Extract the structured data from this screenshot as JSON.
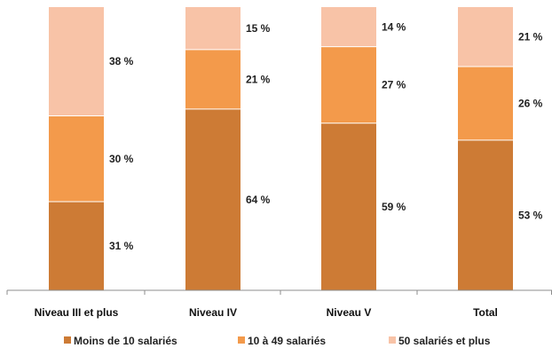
{
  "chart_data": {
    "type": "bar",
    "stacked": true,
    "categories": [
      "Niveau III et plus",
      "Niveau IV",
      "Niveau V",
      "Total"
    ],
    "series": [
      {
        "name": "Moins de 10 salariés",
        "values": [
          31,
          64,
          59,
          53
        ],
        "labels": [
          "31 %",
          "64 %",
          "59 %",
          "53 %"
        ],
        "color": "#CD7B35"
      },
      {
        "name": "10 à 49 salariés",
        "values": [
          30,
          21,
          27,
          26
        ],
        "labels": [
          "30 %",
          "21 %",
          "27 %",
          "26 %"
        ],
        "color": "#F39A4B"
      },
      {
        "name": "50 salariés et plus",
        "values": [
          38,
          15,
          14,
          21
        ],
        "labels": [
          "38 %",
          "15 %",
          "14 %",
          "21 %"
        ],
        "color": "#F8C3A7"
      }
    ],
    "ylim": [
      0,
      100
    ],
    "grid": false,
    "legend_position": "bottom"
  }
}
